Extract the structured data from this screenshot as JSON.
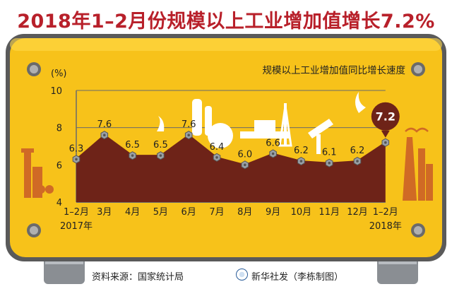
{
  "title": "2018年1–2月份规模以上工业增加值增长7.2%",
  "legend": "规模以上工业增加值同比增长速度",
  "footer": {
    "source": "资料来源：国家统计局",
    "credit": "新华社发（李栋制图）"
  },
  "colors": {
    "title": "#b8202a",
    "board": "#f7c21a",
    "area": "#6e2318",
    "grid": "#6a6a6a",
    "marker": "#9aa0a6",
    "callout": "#6e2318"
  },
  "chart_data": {
    "type": "area",
    "title": "2018年1–2月份规模以上工业增加值增长7.2%",
    "ylabel": "(%)",
    "ylim": [
      4,
      10
    ],
    "yticks": [
      4,
      6,
      8,
      10
    ],
    "grid": true,
    "legend_position": "top-right",
    "categories": [
      "1–2月",
      "3月",
      "4月",
      "5月",
      "6月",
      "7月",
      "8月",
      "9月",
      "10月",
      "11月",
      "12月",
      "1–2月"
    ],
    "year_labels": [
      "2017年",
      "2018年"
    ],
    "series": [
      {
        "name": "规模以上工业增加值同比增长速度",
        "values": [
          6.3,
          7.6,
          6.5,
          6.5,
          7.6,
          6.4,
          6.0,
          6.6,
          6.2,
          6.1,
          6.2,
          7.2
        ],
        "labels": [
          "6.3",
          "7.6",
          "6.5",
          "6.5",
          "7.6",
          "6.4",
          "6.0",
          "6.6",
          "6.2",
          "6.1",
          "6.2",
          "7.2"
        ]
      }
    ],
    "highlight_index": 11
  }
}
